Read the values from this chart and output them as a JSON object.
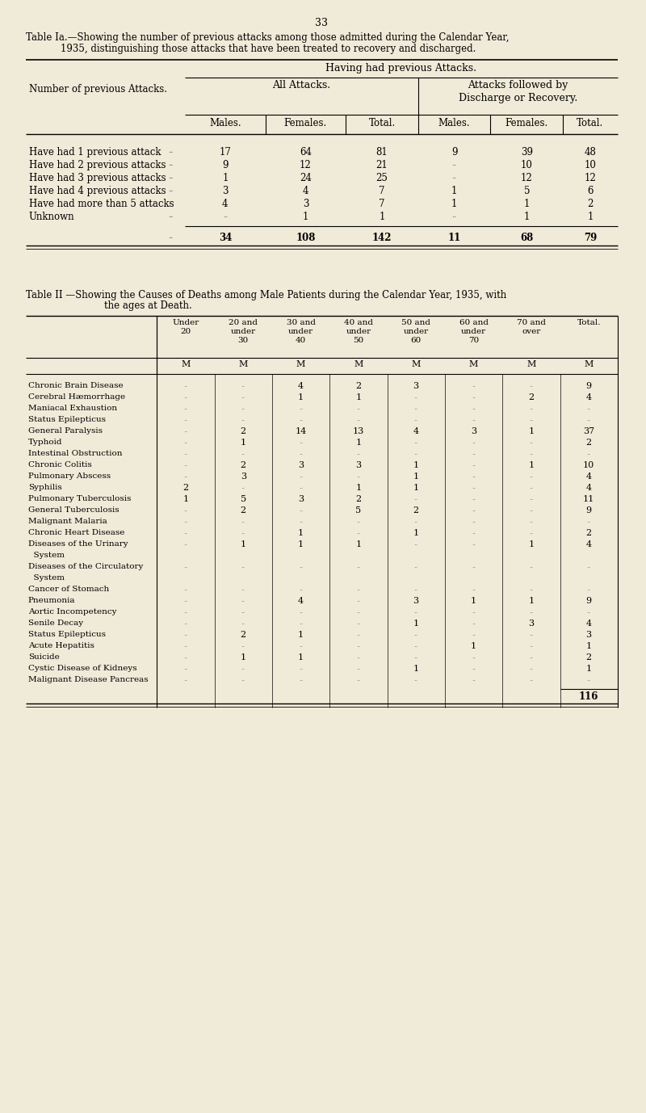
{
  "page_number": "33",
  "bg_color": "#f0ead8",
  "table1_title_line1": "Table Ia.—Showing the number of previous attacks among those admitted during the Calendar Year,",
  "table1_title_line2": "1935, distinguishing those attacks that have been treated to recovery and discharged.",
  "table1_header1": "Having had previous Attacks.",
  "table1_header2a": "All Attacks.",
  "table1_header2b": "Attacks followed by\nDischarge or Recovery.",
  "table1_col_headers": [
    "Males.",
    "Females.",
    "Total.",
    "Males.",
    "Females.",
    "Total."
  ],
  "table1_row_label": "Number of previous Attacks.",
  "table1_rows": [
    [
      "Have had 1 previous attack",
      "..",
      "17",
      "64",
      "81",
      "9",
      "39",
      "48"
    ],
    [
      "Have had 2 previous attacks",
      "..",
      "9",
      "12",
      "21",
      "..",
      "10",
      "10"
    ],
    [
      "Have had 3 previous attacks",
      "..",
      "1",
      "24",
      "25",
      "..",
      "12",
      "12"
    ],
    [
      "Have had 4 previous attacks",
      "..",
      "3",
      "4",
      "7",
      "1",
      "5",
      "6"
    ],
    [
      "Have had more than 5 attacks",
      "..",
      "4",
      "3",
      "7",
      "1",
      "1",
      "2"
    ],
    [
      "Unknown",
      "..",
      "..",
      "1",
      "1",
      "..",
      "1",
      "1"
    ]
  ],
  "table1_totals": [
    "..",
    "34",
    "108",
    "142",
    "11",
    "68",
    "79"
  ],
  "table2_title_line1": "Table II —Showing the Causes of Deaths among Male Patients during the Calendar Year, 1935, with",
  "table2_title_line2": "the ages at Death.",
  "table2_age_headers": [
    "Under\n20",
    "20 and\nunder\n30",
    "30 and\nunder\n40",
    "40 and\nunder\n50",
    "50 and\nunder\n60",
    "60 and\nunder\n70",
    "70 and\nover",
    "Total."
  ],
  "table2_rows": [
    [
      "Chronic Brain Disease",
      "..",
      "..",
      "4",
      "2",
      "3",
      "..",
      "..",
      "9"
    ],
    [
      "Cerebral Hæmorrhage",
      "..",
      "..",
      "1",
      "1",
      "..",
      "..",
      "2",
      "4"
    ],
    [
      "Maniacal Exhaustion",
      "..",
      "..",
      "..",
      "..",
      "..",
      "..",
      "..",
      ".."
    ],
    [
      "Status Epilepticus",
      "..",
      "..",
      "..",
      "..",
      "..",
      "..",
      "..",
      ".."
    ],
    [
      "General Paralysis",
      "..",
      "2",
      "14",
      "13",
      "4",
      "3",
      "1",
      "37"
    ],
    [
      "Typhoid",
      "..",
      "1",
      "..",
      "1",
      "..",
      "..",
      "..",
      "2"
    ],
    [
      "Intestinal Obstruction",
      "..",
      "..",
      "..",
      "..",
      "..",
      "..",
      "..",
      ".."
    ],
    [
      "Chronic Colitis",
      "..",
      "2",
      "3",
      "3",
      "1",
      "..",
      "1",
      "10"
    ],
    [
      "Pulmonary Abscess",
      "..",
      "3",
      "..",
      "..",
      "1",
      "..",
      "..",
      "4"
    ],
    [
      "Syphilis",
      "2",
      "..",
      "..",
      "1",
      "1",
      "..",
      "..",
      "4"
    ],
    [
      "Pulmonary Tuberculosis",
      "1",
      "5",
      "3",
      "2",
      "..",
      "..",
      "..",
      "11"
    ],
    [
      "General Tuberculosis",
      "..",
      "2",
      "..",
      "5",
      "2",
      "..",
      "..",
      "9"
    ],
    [
      "Malignant Malaria",
      "..",
      "..",
      "..",
      "..",
      "..",
      "..",
      "..",
      ".."
    ],
    [
      "Chronic Heart Disease",
      "..",
      "..",
      "1",
      "..",
      "1",
      "..",
      "..",
      "2"
    ],
    [
      "Diseases of the Urinary",
      "..",
      "1",
      "1",
      "1",
      "..",
      "..",
      "1",
      "4"
    ],
    [
      "  System",
      "",
      "",
      "",
      "",
      "",
      "",
      "",
      ""
    ],
    [
      "Diseases of the Circulatory",
      "..",
      "..",
      "..",
      "..",
      "..",
      "..",
      "..",
      ".."
    ],
    [
      "  System",
      "",
      "",
      "",
      "",
      "",
      "",
      "",
      ""
    ],
    [
      "Cancer of Stomach",
      "..",
      "..",
      "..",
      "..",
      "..",
      "..",
      "..",
      ".."
    ],
    [
      "Pneumonia",
      "..",
      "..",
      "4",
      "..",
      "3",
      "1",
      "1",
      "9"
    ],
    [
      "Aortic Incompetency",
      "..",
      "..",
      "..",
      "..",
      "..",
      "..",
      "..",
      ".."
    ],
    [
      "Senile Decay",
      "..",
      "..",
      "..",
      "..",
      "1",
      "..",
      "3",
      "4"
    ],
    [
      "Status Epilepticus",
      "..",
      "2",
      "1",
      "..",
      "..",
      "..",
      "..",
      "3"
    ],
    [
      "Acute Hepatitis",
      "..",
      "..",
      "..",
      "..",
      "..",
      "1",
      "..",
      "1"
    ],
    [
      "Suicide",
      "..",
      "1",
      "1",
      "..",
      "..",
      "..",
      "..",
      "2"
    ],
    [
      "Cystic Disease of Kidneys",
      "..",
      "..",
      "..",
      "..",
      "1",
      "..",
      "..",
      "1"
    ],
    [
      "Malignant Disease Pancreas",
      "..",
      "..",
      "..",
      "..",
      "..",
      "..",
      "..",
      ".."
    ]
  ],
  "table2_total": "116"
}
